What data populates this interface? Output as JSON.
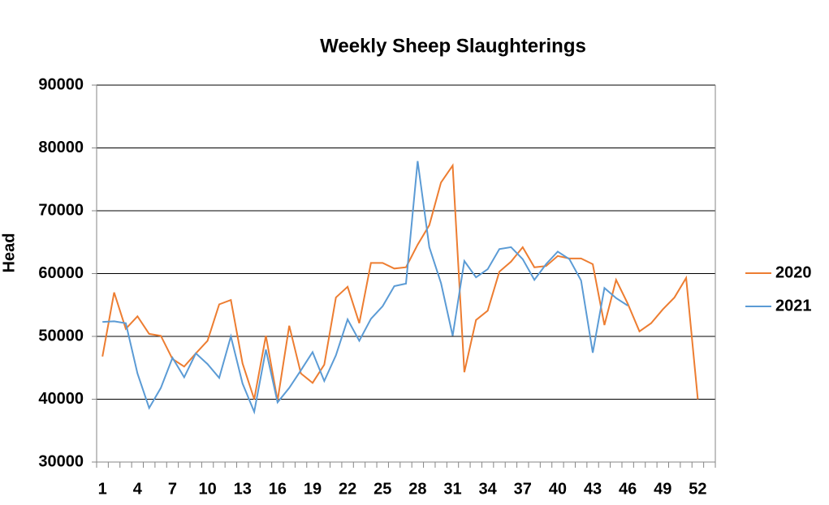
{
  "chart_data": {
    "type": "line",
    "title": "Weekly Sheep Slaughterings",
    "y_label": "Head",
    "categories": [
      1,
      null,
      null,
      4,
      null,
      null,
      7,
      null,
      null,
      10,
      null,
      null,
      13,
      null,
      null,
      16,
      null,
      null,
      19,
      null,
      null,
      22,
      null,
      null,
      25,
      null,
      null,
      28,
      null,
      null,
      31,
      null,
      null,
      34,
      null,
      null,
      37,
      null,
      null,
      40,
      null,
      null,
      43,
      null,
      null,
      46,
      null,
      null,
      49,
      null,
      null,
      52,
      null
    ],
    "series": [
      {
        "name": "2020",
        "color": "#ed7d31",
        "values": [
          46800,
          57000,
          51200,
          53200,
          50400,
          50100,
          46400,
          45200,
          47300,
          49300,
          55100,
          55800,
          45700,
          40000,
          50100,
          39800,
          51700,
          44100,
          42600,
          45500,
          56200,
          57900,
          52100,
          61700,
          61700,
          60800,
          61000,
          64600,
          67700,
          74500,
          77200,
          44300,
          52600,
          54100,
          60300,
          61900,
          64200,
          61000,
          61200,
          62800,
          62400,
          62400,
          61500,
          51800,
          59000,
          55200,
          50800,
          52100,
          54300,
          56200,
          59300,
          40000,
          null
        ]
      },
      {
        "name": "2021",
        "color": "#5b9bd5",
        "values": [
          52300,
          52400,
          52100,
          44100,
          38600,
          41800,
          46600,
          43500,
          47300,
          45600,
          43400,
          50000,
          42500,
          38000,
          47900,
          39500,
          41800,
          44600,
          47500,
          42900,
          47000,
          52700,
          49300,
          52800,
          54800,
          58000,
          58400,
          77900,
          64200,
          58500,
          50100,
          62000,
          59400,
          60700,
          63900,
          64200,
          62300,
          59000,
          61500,
          63500,
          62300,
          58900,
          47400,
          57700,
          56100,
          54900,
          null,
          null,
          null,
          null,
          null,
          null,
          null
        ]
      }
    ],
    "ylim": [
      30000,
      90000
    ],
    "yticks": [
      30000,
      40000,
      50000,
      60000,
      70000,
      80000,
      90000
    ],
    "grid": true,
    "legend": "right"
  }
}
